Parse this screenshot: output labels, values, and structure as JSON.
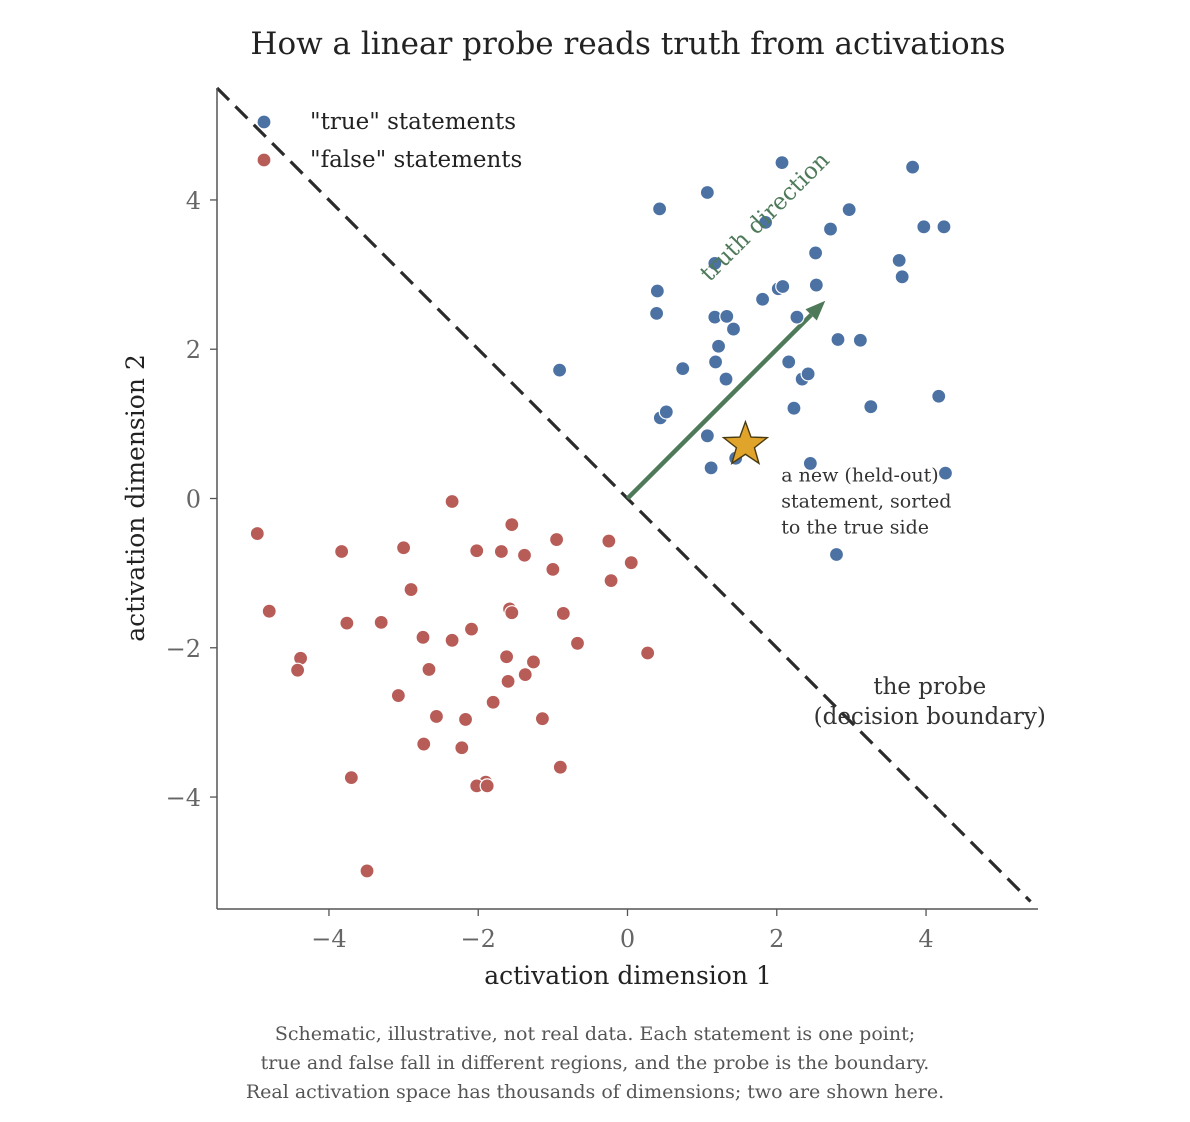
{
  "chart_data": {
    "type": "scatter",
    "title": "How a linear probe reads truth from activations",
    "xlabel": "activation dimension 1",
    "ylabel": "activation dimension 2",
    "xlim": [
      -5.5,
      5.5
    ],
    "ylim": [
      -5.5,
      5.5
    ],
    "xticks": [
      -4,
      -2,
      0,
      2,
      4
    ],
    "yticks": [
      -4,
      -2,
      0,
      2,
      4
    ],
    "xtick_labels": [
      "−4",
      "−2",
      "0",
      "2",
      "4"
    ],
    "ytick_labels": [
      "−4",
      "−2",
      "0",
      "2",
      "4"
    ],
    "grid": false,
    "legend_position": "top-left",
    "series": [
      {
        "name": "\"true\" statements",
        "color": "#4c72a4",
        "points": [
          [
            2.07,
            4.5
          ],
          [
            1.07,
            4.1
          ],
          [
            0.43,
            3.88
          ],
          [
            3.82,
            4.44
          ],
          [
            1.85,
            3.7
          ],
          [
            2.72,
            3.61
          ],
          [
            2.97,
            3.87
          ],
          [
            3.97,
            3.64
          ],
          [
            4.24,
            3.64
          ],
          [
            1.17,
            3.15
          ],
          [
            2.52,
            3.29
          ],
          [
            3.64,
            3.19
          ],
          [
            3.68,
            2.97
          ],
          [
            0.4,
            2.78
          ],
          [
            1.81,
            2.67
          ],
          [
            2.02,
            2.81
          ],
          [
            2.08,
            2.84
          ],
          [
            2.53,
            2.86
          ],
          [
            0.39,
            2.48
          ],
          [
            1.17,
            2.43
          ],
          [
            1.33,
            2.44
          ],
          [
            2.27,
            2.43
          ],
          [
            1.42,
            2.27
          ],
          [
            1.22,
            2.04
          ],
          [
            2.82,
            2.13
          ],
          [
            3.12,
            2.12
          ],
          [
            -0.91,
            1.72
          ],
          [
            0.74,
            1.74
          ],
          [
            1.18,
            1.83
          ],
          [
            2.16,
            1.83
          ],
          [
            1.32,
            1.6
          ],
          [
            2.34,
            1.6
          ],
          [
            2.42,
            1.67
          ],
          [
            4.17,
            1.37
          ],
          [
            0.44,
            1.08
          ],
          [
            0.52,
            1.16
          ],
          [
            2.23,
            1.21
          ],
          [
            3.26,
            1.23
          ],
          [
            1.07,
            0.84
          ],
          [
            1.45,
            0.54
          ],
          [
            1.12,
            0.41
          ],
          [
            2.45,
            0.47
          ],
          [
            4.26,
            0.34
          ],
          [
            2.8,
            -0.75
          ]
        ]
      },
      {
        "name": "\"false\" statements",
        "color": "#b85c58",
        "points": [
          [
            -2.35,
            -0.04
          ],
          [
            -4.96,
            -0.47
          ],
          [
            -3.83,
            -0.71
          ],
          [
            -3.0,
            -0.66
          ],
          [
            -2.02,
            -0.7
          ],
          [
            -1.69,
            -0.71
          ],
          [
            -1.38,
            -0.76
          ],
          [
            -1.55,
            -0.35
          ],
          [
            -0.95,
            -0.55
          ],
          [
            -0.25,
            -0.57
          ],
          [
            -0.22,
            -1.1
          ],
          [
            0.05,
            -0.86
          ],
          [
            -1.0,
            -0.95
          ],
          [
            -2.9,
            -1.22
          ],
          [
            -4.8,
            -1.51
          ],
          [
            -3.76,
            -1.67
          ],
          [
            -3.3,
            -1.66
          ],
          [
            -2.74,
            -1.86
          ],
          [
            -2.35,
            -1.9
          ],
          [
            -2.09,
            -1.75
          ],
          [
            -1.58,
            -1.48
          ],
          [
            -1.55,
            -1.53
          ],
          [
            -0.86,
            -1.54
          ],
          [
            -0.67,
            -1.94
          ],
          [
            -4.38,
            -2.14
          ],
          [
            -4.42,
            -2.3
          ],
          [
            -2.66,
            -2.29
          ],
          [
            -1.62,
            -2.12
          ],
          [
            -1.26,
            -2.19
          ],
          [
            0.27,
            -2.07
          ],
          [
            -1.37,
            -2.36
          ],
          [
            -1.6,
            -2.45
          ],
          [
            -3.07,
            -2.64
          ],
          [
            -1.8,
            -2.73
          ],
          [
            -2.56,
            -2.92
          ],
          [
            -2.17,
            -2.96
          ],
          [
            -1.14,
            -2.95
          ],
          [
            -2.73,
            -3.29
          ],
          [
            -2.22,
            -3.34
          ],
          [
            -0.9,
            -3.6
          ],
          [
            -3.7,
            -3.74
          ],
          [
            -1.9,
            -3.8
          ],
          [
            -2.02,
            -3.85
          ],
          [
            -1.88,
            -3.85
          ],
          [
            -3.49,
            -4.99
          ]
        ]
      }
    ],
    "boundary": {
      "from": [
        -5.5,
        5.5
      ],
      "to": [
        5.4,
        -5.4
      ],
      "label_lines": [
        "the probe",
        "(decision boundary)"
      ],
      "label_at": [
        4.05,
        -2.62
      ]
    },
    "truth_arrow": {
      "from": [
        0.0,
        0.0
      ],
      "to": [
        2.65,
        2.65
      ],
      "label": "truth direction",
      "color": "#4e7a5a"
    },
    "held_out": {
      "point": [
        1.58,
        0.72
      ],
      "color": "#e0a42a",
      "label_lines": [
        "a new (held-out)",
        "statement, sorted",
        "to the true side"
      ],
      "label_at": [
        2.06,
        0.23
      ]
    }
  },
  "caption": {
    "line1": "Schematic, illustrative, not real data. Each statement is one point;",
    "line2": "true and false fall in different regions, and the probe is the boundary.",
    "line3": "Real activation space has thousands of dimensions; two are shown here."
  }
}
